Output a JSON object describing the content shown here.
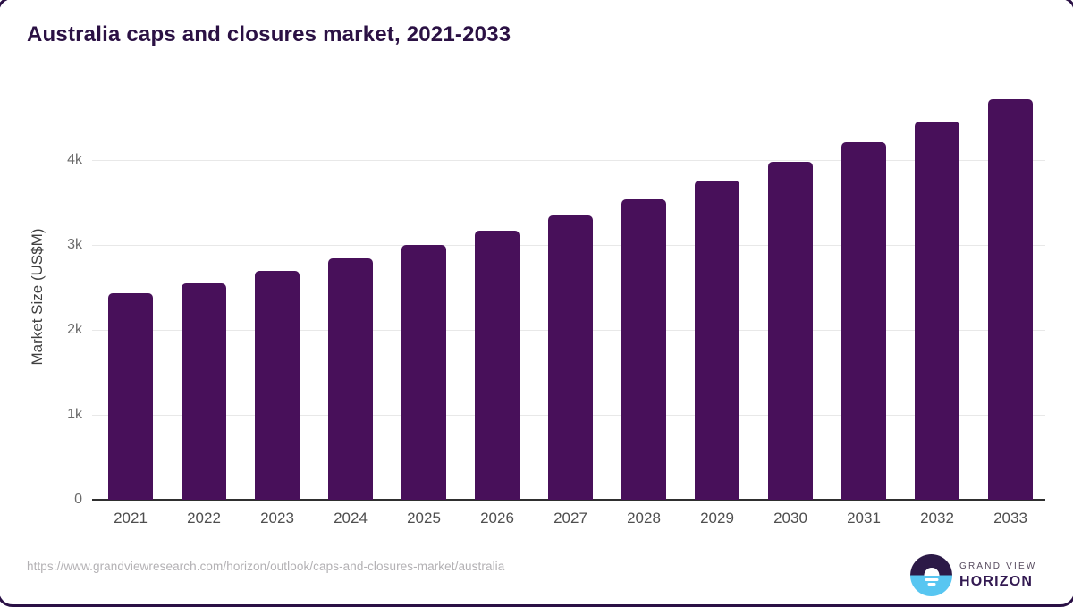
{
  "chart_data": {
    "type": "bar",
    "title": "Australia caps and closures market, 2021-2033",
    "xlabel": "",
    "ylabel": "Market Size (US$M)",
    "categories": [
      "2021",
      "2022",
      "2023",
      "2024",
      "2025",
      "2026",
      "2027",
      "2028",
      "2029",
      "2030",
      "2031",
      "2032",
      "2033"
    ],
    "values": [
      2430,
      2545,
      2695,
      2840,
      3000,
      3170,
      3345,
      3535,
      3755,
      3980,
      4210,
      4450,
      4715
    ],
    "unit": "US$M",
    "ylim": [
      0,
      4750
    ],
    "yticks": [
      {
        "value": 0,
        "label": "0"
      },
      {
        "value": 1000,
        "label": "1k"
      },
      {
        "value": 2000,
        "label": "2k"
      },
      {
        "value": 3000,
        "label": "3k"
      },
      {
        "value": 4000,
        "label": "4k"
      }
    ],
    "grid": "horizontal",
    "legend": "none",
    "bar_color": "#48105a"
  },
  "footer": {
    "source_url": "https://www.grandviewresearch.com/horizon/outlook/caps-and-closures-market/australia",
    "logo": {
      "top_text": "GRAND VIEW",
      "bottom_text": "HORIZON",
      "icon": "sunrise-horizon-icon",
      "icon_colors": {
        "top_half": "#2c1a47",
        "bottom_half": "#58c6f1"
      }
    }
  },
  "colors": {
    "background": "#ffffff",
    "title_text": "#2b1144",
    "bar": "#48105a",
    "gridline": "#e8e8e8",
    "axis_line": "#2f2f2f",
    "tick_text": "#6b6b6b",
    "category_text": "#4e4e4e",
    "url_text": "#b3b1b4",
    "border": "#2a1045"
  }
}
